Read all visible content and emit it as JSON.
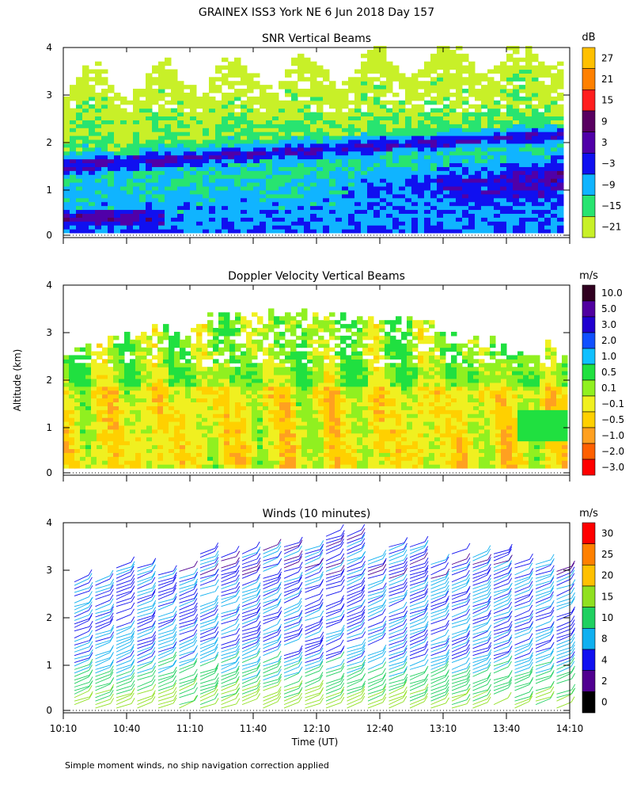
{
  "figure": {
    "title": "GRAINEX ISS3 York NE   6 Jun 2018 Day 157",
    "ylabel": "Altitude (km)",
    "xlabel": "Time (UT)",
    "footnote": "Simple moment winds, no ship navigation correction applied"
  },
  "chart_data": [
    {
      "type": "heatmap",
      "title": "SNR Vertical Beams",
      "unit": "dB",
      "xlim": [
        "10:10",
        "14:10"
      ],
      "ylim": [
        0,
        4
      ],
      "y_ticks": [
        "0",
        "1",
        "2",
        "3",
        "4"
      ],
      "colorbar_labels": [
        "27",
        "21",
        "15",
        "9",
        "3",
        "−3",
        "−9",
        "−15",
        "−21"
      ],
      "colorbar_colors": [
        "#ffc000",
        "#ff8000",
        "#ff1e1e",
        "#580060",
        "#5000a8",
        "#1010f0",
        "#10b4ff",
        "#28e470",
        "#c8f028"
      ]
    },
    {
      "type": "heatmap",
      "title": "Doppler Velocity Vertical Beams",
      "unit": "m/s",
      "xlim": [
        "10:10",
        "14:10"
      ],
      "ylim": [
        0,
        4
      ],
      "y_ticks": [
        "0",
        "1",
        "2",
        "3",
        "4"
      ],
      "colorbar_labels": [
        "10.0",
        "5.0",
        "3.0",
        "2.0",
        "1.0",
        "0.5",
        "0.1",
        "−0.1",
        "−0.5",
        "−1.0",
        "−2.0",
        "−3.0"
      ],
      "colorbar_colors": [
        "#300020",
        "#5000a0",
        "#2000d0",
        "#1050ff",
        "#10c0ff",
        "#20e040",
        "#90f020",
        "#f0f020",
        "#ffd000",
        "#ffa020",
        "#ff6000",
        "#ff0000"
      ]
    },
    {
      "type": "barbs",
      "title": "Winds (10 minutes)",
      "unit": "m/s",
      "xlim": [
        "10:10",
        "14:10"
      ],
      "ylim": [
        0,
        4
      ],
      "y_ticks": [
        "0",
        "1",
        "2",
        "3",
        "4"
      ],
      "x_ticks": [
        "10:10",
        "10:40",
        "11:10",
        "11:40",
        "12:10",
        "12:40",
        "13:10",
        "13:40",
        "14:10"
      ],
      "colorbar_labels": [
        "30",
        "25",
        "20",
        "15",
        "10",
        "8",
        "4",
        "2",
        "0"
      ],
      "colorbar_colors": [
        "#ff0000",
        "#ff8000",
        "#ffc000",
        "#90e020",
        "#20d060",
        "#10b0f0",
        "#1010f0",
        "#500090",
        "#000000"
      ]
    }
  ]
}
